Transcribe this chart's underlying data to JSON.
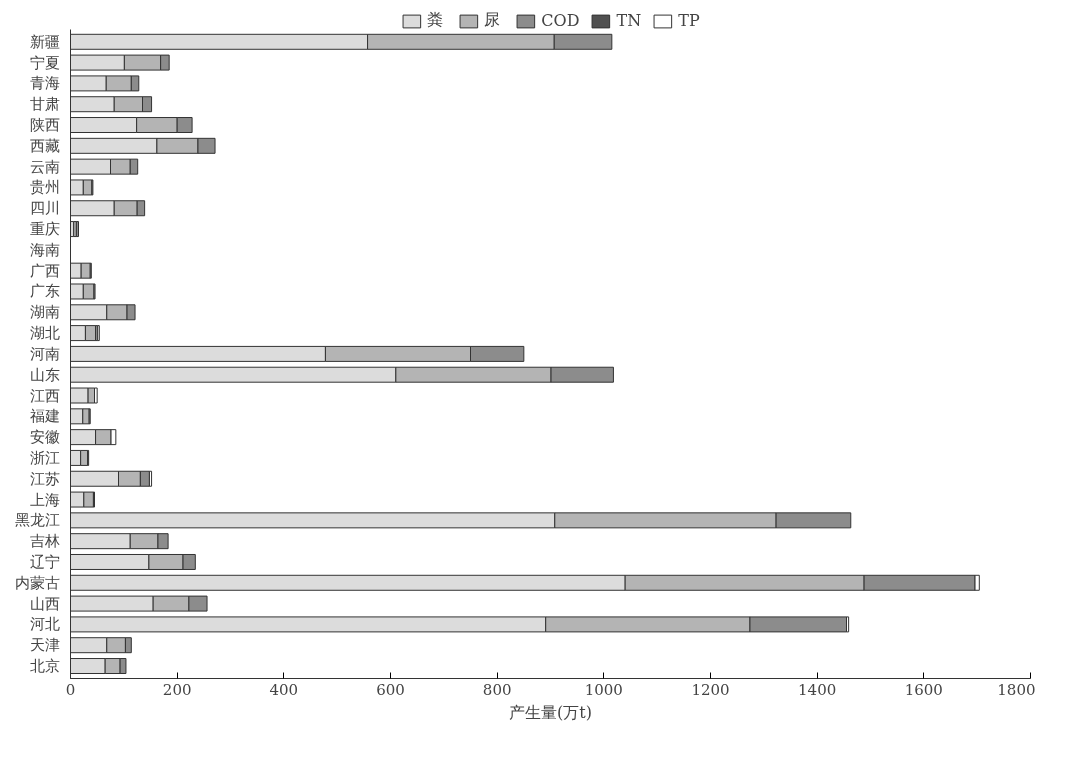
{
  "chart_data": {
    "type": "bar",
    "orientation": "horizontal",
    "stacked": true,
    "categories": [
      "新疆",
      "宁夏",
      "青海",
      "甘肃",
      "陕西",
      "西藏",
      "云南",
      "贵州",
      "四川",
      "重庆",
      "海南",
      "广西",
      "广东",
      "湖南",
      "湖北",
      "河南",
      "山东",
      "江西",
      "福建",
      "安徽",
      "浙江",
      "江苏",
      "上海",
      "黑龙江",
      "吉林",
      "辽宁",
      "内蒙古",
      "山西",
      "河北",
      "天津",
      "北京"
    ],
    "series": [
      {
        "name": "粪",
        "color": "#dcdcdc",
        "values": [
          557,
          101,
          67,
          82,
          124,
          162,
          75,
          24,
          82,
          6,
          null,
          20,
          24,
          68,
          28,
          478,
          610,
          33,
          23,
          47,
          19,
          90,
          25,
          908,
          112,
          147,
          1040,
          155,
          891,
          68,
          65
        ]
      },
      {
        "name": "尿",
        "color": "#b4b4b4",
        "values": [
          350,
          68,
          47,
          53,
          76,
          77,
          37,
          16,
          43,
          5,
          null,
          17,
          20,
          38,
          19,
          272,
          291,
          12,
          12,
          29,
          13,
          41,
          18,
          415,
          52,
          64,
          448,
          67,
          383,
          35,
          28
        ]
      },
      {
        "name": "COD",
        "color": "#8c8c8c",
        "values": [
          108,
          16,
          14,
          17,
          28,
          32,
          14,
          2,
          14,
          4,
          null,
          2,
          2,
          15,
          4,
          100,
          117,
          null,
          2,
          null,
          2,
          17,
          2,
          140,
          19,
          23,
          208,
          34,
          181,
          11,
          11
        ]
      },
      {
        "name": "TN",
        "color": "#505050",
        "values": [
          null,
          null,
          null,
          null,
          null,
          null,
          null,
          null,
          null,
          null,
          null,
          null,
          null,
          null,
          null,
          null,
          null,
          null,
          null,
          null,
          null,
          null,
          null,
          null,
          null,
          null,
          null,
          null,
          null,
          null,
          null
        ]
      },
      {
        "name": "TP",
        "color": "#ffffff",
        "values": [
          null,
          null,
          null,
          null,
          null,
          null,
          null,
          null,
          null,
          null,
          null,
          null,
          null,
          null,
          3,
          null,
          null,
          5,
          null,
          9,
          null,
          4,
          null,
          null,
          null,
          null,
          8,
          null,
          4,
          null,
          null
        ]
      }
    ],
    "xlabel": "产生量(万t)",
    "xlim": [
      0,
      1800
    ],
    "xticks": [
      0,
      200,
      400,
      600,
      800,
      1000,
      1200,
      1400,
      1600,
      1800
    ],
    "legend": "top",
    "grid": false
  }
}
